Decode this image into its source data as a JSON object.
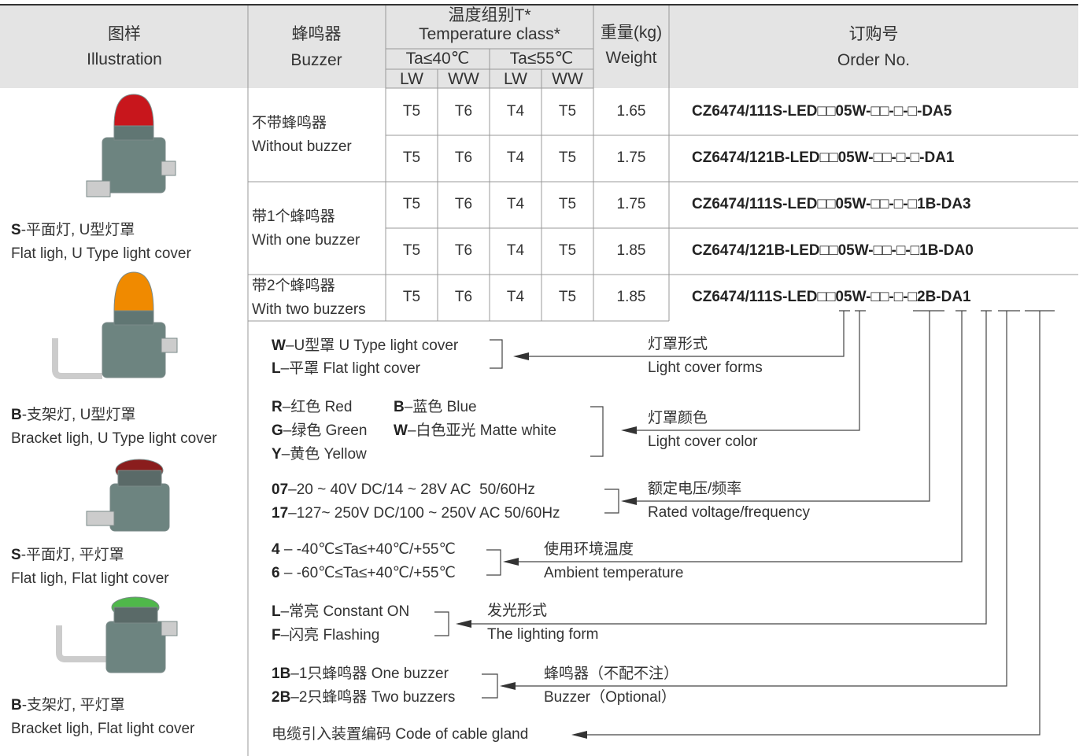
{
  "header": {
    "illustration": {
      "zh": "图样",
      "en": "Illustration"
    },
    "buzzer": {
      "zh": "蜂鸣器",
      "en": "Buzzer"
    },
    "temperature": {
      "zh": "温度组别T*",
      "en": "Temperature class*",
      "ambient": [
        "Ta≤40℃",
        "Ta≤55℃"
      ],
      "sub": [
        "LW",
        "WW",
        "LW",
        "WW"
      ]
    },
    "weight": {
      "zh": "重量(kg)",
      "en": "Weight"
    },
    "order": {
      "zh": "订购号",
      "en": "Order No."
    }
  },
  "buzzer_groups": [
    {
      "zh": "不带蜂鸣器",
      "en": "Without buzzer"
    },
    {
      "zh": "带1个蜂鸣器",
      "en": "With one buzzer"
    },
    {
      "zh": "带2个蜂鸣器",
      "en": "With two buzzers"
    }
  ],
  "rows": [
    {
      "temps": [
        "T5",
        "T6",
        "T4",
        "T5"
      ],
      "weight": "1.65",
      "order": "CZ6474/111S-LED□□05W-□□-□-□-DA5"
    },
    {
      "temps": [
        "T5",
        "T6",
        "T4",
        "T5"
      ],
      "weight": "1.75",
      "order": "CZ6474/121B-LED□□05W-□□-□-□-DA1"
    },
    {
      "temps": [
        "T5",
        "T6",
        "T4",
        "T5"
      ],
      "weight": "1.75",
      "order": "CZ6474/111S-LED□□05W-□□-□-□1B-DA3"
    },
    {
      "temps": [
        "T5",
        "T6",
        "T4",
        "T5"
      ],
      "weight": "1.85",
      "order": "CZ6474/121B-LED□□05W-□□-□-□1B-DA0"
    },
    {
      "temps": [
        "T5",
        "T6",
        "T4",
        "T5"
      ],
      "weight": "1.85",
      "order": "CZ6474/111S-LED□□05W-□□-□-□2B-DA1"
    }
  ],
  "illustrations": [
    {
      "code": "S",
      "zh": "-平面灯, U型灯罩",
      "en": "Flat ligh, U Type light cover"
    },
    {
      "code": "B",
      "zh": "-支架灯, U型灯罩",
      "en": "Bracket ligh, U Type light cover"
    },
    {
      "code": "S",
      "zh": "-平面灯, 平灯罩",
      "en": "Flat ligh, Flat light cover"
    },
    {
      "code": "B",
      "zh": "-支架灯, 平灯罩",
      "en": "Bracket ligh, Flat light cover"
    }
  ],
  "legend": [
    {
      "options": [
        {
          "code": "W",
          "text": "–U型罩 U Type light cover"
        },
        {
          "code": "L",
          "text": "–平罩 Flat light cover"
        }
      ],
      "label": {
        "zh": "灯罩形式",
        "en": "Light cover forms"
      }
    },
    {
      "options": [
        {
          "code": "R",
          "text": "–红色 Red"
        },
        {
          "code": "B",
          "text": "–蓝色 Blue"
        },
        {
          "code": "G",
          "text": "–绿色 Green"
        },
        {
          "code": "W",
          "text": "–白色亚光 Matte white"
        },
        {
          "code": "Y",
          "text": "–黄色 Yellow"
        }
      ],
      "label": {
        "zh": "灯罩颜色",
        "en": "Light cover color"
      }
    },
    {
      "options": [
        {
          "code": "07",
          "text": "–20 ~ 40V DC/14 ~ 28V AC  50/60Hz"
        },
        {
          "code": "17",
          "text": "–127~ 250V DC/100 ~ 250V AC 50/60Hz"
        }
      ],
      "label": {
        "zh": "额定电压/频率",
        "en": "Rated voltage/frequency"
      }
    },
    {
      "options": [
        {
          "code": "4",
          "text": " – -40℃≤Ta≤+40℃/+55℃"
        },
        {
          "code": "6",
          "text": " – -60℃≤Ta≤+40℃/+55℃"
        }
      ],
      "label": {
        "zh": "使用环境温度",
        "en": "Ambient temperature"
      }
    },
    {
      "options": [
        {
          "code": "L",
          "text": "–常亮 Constant ON"
        },
        {
          "code": "F",
          "text": "–闪亮 Flashing"
        }
      ],
      "label": {
        "zh": "发光形式",
        "en": "The lighting form"
      }
    },
    {
      "options": [
        {
          "code": "1B",
          "text": "–1只蜂鸣器 One buzzer"
        },
        {
          "code": "2B",
          "text": "–2只蜂鸣器 Two buzzers"
        }
      ],
      "label": {
        "zh": "蜂鸣器（不配不注）",
        "en": "Buzzer（Optional）"
      }
    }
  ],
  "cable_gland": "电缆引入装置编码 Code of cable gland"
}
